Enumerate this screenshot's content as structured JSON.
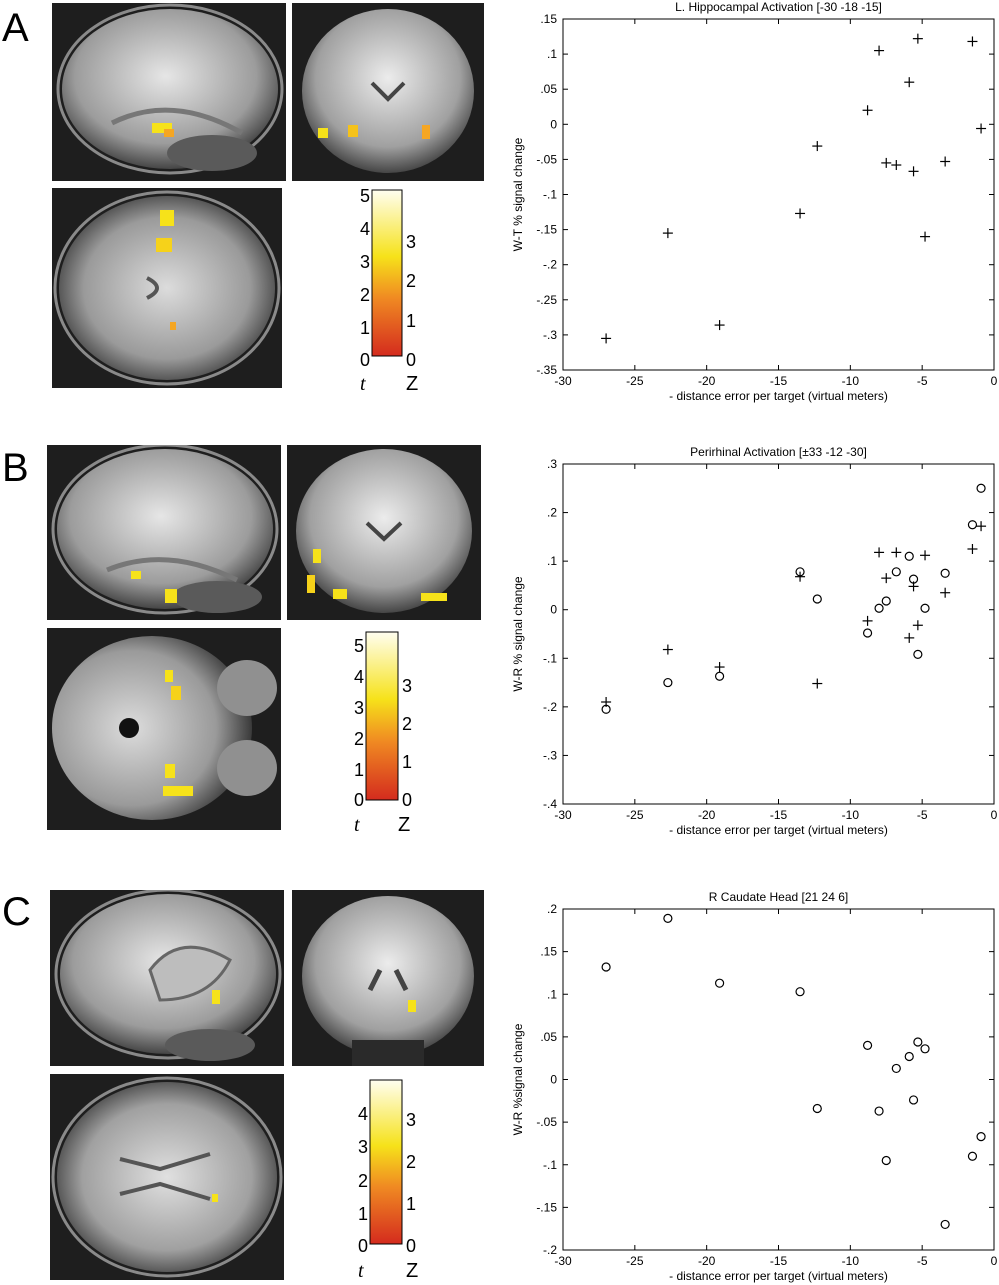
{
  "panels": [
    {
      "letter": "A",
      "colorbar": {
        "t_ticks": [
          "0",
          "1",
          "2",
          "3",
          "4",
          "5"
        ],
        "z_ticks": [
          "0",
          "1",
          "2",
          "3"
        ],
        "t_label": "t",
        "z_label": "Z"
      }
    },
    {
      "letter": "B",
      "colorbar": {
        "t_ticks": [
          "0",
          "1",
          "2",
          "3",
          "4",
          "5"
        ],
        "z_ticks": [
          "0",
          "1",
          "2",
          "3"
        ],
        "t_label": "t",
        "z_label": "Z"
      }
    },
    {
      "letter": "C",
      "colorbar": {
        "t_ticks": [
          "0",
          "1",
          "2",
          "3",
          "4"
        ],
        "z_ticks": [
          "0",
          "1",
          "2",
          "3"
        ],
        "t_label": "t",
        "z_label": "Z"
      }
    }
  ],
  "colormap": {
    "low": "#d42b1e",
    "mid": "#f5a623",
    "high": "#f6f21a",
    "top": "#fffbe6"
  },
  "chart_data": [
    {
      "type": "scatter",
      "title": "L. Hippocampal Activation [-30 -18 -15]",
      "xlabel": "- distance error per target (virtual meters)",
      "ylabel": "W-T % signal change",
      "xlim": [
        -30,
        0
      ],
      "ylim": [
        -0.35,
        0.15
      ],
      "xticks": [
        -30,
        -25,
        -20,
        -15,
        -10,
        -5,
        0
      ],
      "yticks": [
        -0.35,
        -0.3,
        -0.25,
        -0.2,
        -0.15,
        -0.1,
        -0.05,
        0,
        0.05,
        0.1,
        0.15
      ],
      "grid": false,
      "series": [
        {
          "marker": "plus",
          "points": [
            [
              -27,
              -0.305
            ],
            [
              -22.7,
              -0.155
            ],
            [
              -19.1,
              -0.286
            ],
            [
              -13.5,
              -0.127
            ],
            [
              -12.3,
              -0.031
            ],
            [
              -8.8,
              0.02
            ],
            [
              -8,
              0.105
            ],
            [
              -7.5,
              -0.055
            ],
            [
              -6.8,
              -0.058
            ],
            [
              -5.9,
              0.06
            ],
            [
              -5.6,
              -0.067
            ],
            [
              -5.3,
              0.122
            ],
            [
              -4.8,
              -0.16
            ],
            [
              -3.4,
              -0.053
            ],
            [
              -1.5,
              0.118
            ],
            [
              -0.9,
              -0.006
            ]
          ]
        }
      ]
    },
    {
      "type": "scatter",
      "title": "Perirhinal Activation [±33 -12 -30]",
      "xlabel": "- distance error per target (virtual meters)",
      "ylabel": "W-R % signal change",
      "xlim": [
        -30,
        0
      ],
      "ylim": [
        -0.4,
        0.3
      ],
      "xticks": [
        -30,
        -25,
        -20,
        -15,
        -10,
        -5,
        0
      ],
      "yticks": [
        -0.4,
        -0.3,
        -0.2,
        -0.1,
        0,
        0.1,
        0.2,
        0.3
      ],
      "grid": false,
      "series": [
        {
          "marker": "plus",
          "points": [
            [
              -27,
              -0.19
            ],
            [
              -22.7,
              -0.082
            ],
            [
              -19.1,
              -0.118
            ],
            [
              -13.5,
              0.068
            ],
            [
              -12.3,
              -0.152
            ],
            [
              -8.8,
              -0.023
            ],
            [
              -8,
              0.118
            ],
            [
              -7.5,
              0.065
            ],
            [
              -6.8,
              0.118
            ],
            [
              -5.9,
              -0.058
            ],
            [
              -5.6,
              0.048
            ],
            [
              -5.3,
              -0.032
            ],
            [
              -4.8,
              0.112
            ],
            [
              -3.4,
              0.035
            ],
            [
              -1.5,
              0.125
            ],
            [
              -0.9,
              0.172
            ]
          ]
        },
        {
          "marker": "circle",
          "points": [
            [
              -27,
              -0.205
            ],
            [
              -22.7,
              -0.15
            ],
            [
              -19.1,
              -0.137
            ],
            [
              -13.5,
              0.078
            ],
            [
              -12.3,
              0.022
            ],
            [
              -8.8,
              -0.048
            ],
            [
              -8,
              0.003
            ],
            [
              -7.5,
              0.018
            ],
            [
              -6.8,
              0.078
            ],
            [
              -5.9,
              0.11
            ],
            [
              -5.6,
              0.063
            ],
            [
              -5.3,
              -0.092
            ],
            [
              -4.8,
              0.003
            ],
            [
              -3.4,
              0.075
            ],
            [
              -1.5,
              0.175
            ],
            [
              -0.9,
              0.25
            ]
          ]
        }
      ]
    },
    {
      "type": "scatter",
      "title": "R Caudate Head [21 24 6]",
      "xlabel": "- distance error per target (virtual meters)",
      "ylabel": "W-R %signal change",
      "xlim": [
        -30,
        0
      ],
      "ylim": [
        -0.2,
        0.2
      ],
      "xticks": [
        -30,
        -25,
        -20,
        -15,
        -10,
        -5,
        0
      ],
      "yticks": [
        -0.2,
        -0.15,
        -0.1,
        -0.05,
        0,
        0.05,
        0.1,
        0.15,
        0.2
      ],
      "grid": false,
      "series": [
        {
          "marker": "circle",
          "points": [
            [
              -27,
              0.132
            ],
            [
              -22.7,
              0.189
            ],
            [
              -19.1,
              0.113
            ],
            [
              -13.5,
              0.103
            ],
            [
              -12.3,
              -0.034
            ],
            [
              -8.8,
              0.04
            ],
            [
              -8,
              -0.037
            ],
            [
              -7.5,
              -0.095
            ],
            [
              -6.8,
              0.013
            ],
            [
              -5.9,
              0.027
            ],
            [
              -5.6,
              -0.024
            ],
            [
              -5.3,
              0.044
            ],
            [
              -4.8,
              0.036
            ],
            [
              -3.4,
              -0.17
            ],
            [
              -1.5,
              -0.09
            ],
            [
              -0.9,
              -0.067
            ]
          ]
        }
      ]
    }
  ]
}
